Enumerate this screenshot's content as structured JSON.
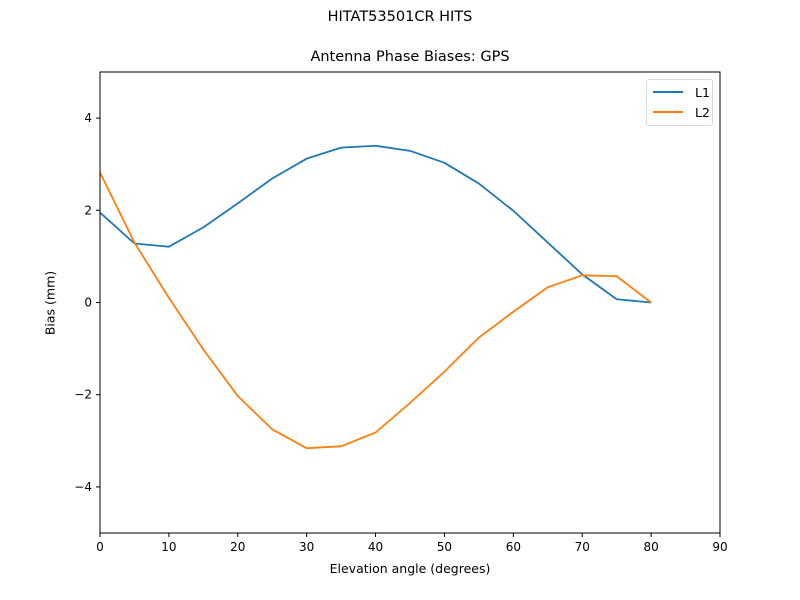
{
  "figure": {
    "suptitle": "HITAT53501CR    HITS",
    "title": "Antenna Phase Biases: GPS",
    "xlabel": "Elevation angle (degrees)",
    "ylabel": "Bias (mm)"
  },
  "legend": {
    "items": [
      {
        "label": "L1",
        "color": "#1f77b4"
      },
      {
        "label": "L2",
        "color": "#ff7f0e"
      }
    ]
  },
  "chart_data": {
    "type": "line",
    "title": "Antenna Phase Biases: GPS",
    "suptitle": "HITAT53501CR    HITS",
    "xlabel": "Elevation angle (degrees)",
    "ylabel": "Bias (mm)",
    "xlim": [
      0,
      90
    ],
    "ylim": [
      -5,
      5
    ],
    "xticks": [
      0,
      10,
      20,
      30,
      40,
      50,
      60,
      70,
      80,
      90
    ],
    "yticks": [
      -4,
      -2,
      0,
      2,
      4
    ],
    "ytick_labels": [
      "−4",
      "−2",
      "0",
      "2",
      "4"
    ],
    "grid": false,
    "legend_position": "upper right",
    "x": [
      0,
      5,
      10,
      15,
      20,
      25,
      30,
      35,
      40,
      45,
      50,
      55,
      60,
      65,
      70,
      75,
      80
    ],
    "series": [
      {
        "name": "L1",
        "color": "#1f77b4",
        "values": [
          1.95,
          1.28,
          1.21,
          1.63,
          2.15,
          2.69,
          3.12,
          3.36,
          3.4,
          3.29,
          3.03,
          2.58,
          1.99,
          1.3,
          0.61,
          0.07,
          0.0
        ]
      },
      {
        "name": "L2",
        "color": "#ff7f0e",
        "values": [
          2.82,
          1.3,
          0.1,
          -1.02,
          -2.03,
          -2.75,
          -3.16,
          -3.12,
          -2.82,
          -2.18,
          -1.5,
          -0.76,
          -0.2,
          0.33,
          0.59,
          0.57,
          0.0
        ]
      }
    ]
  }
}
